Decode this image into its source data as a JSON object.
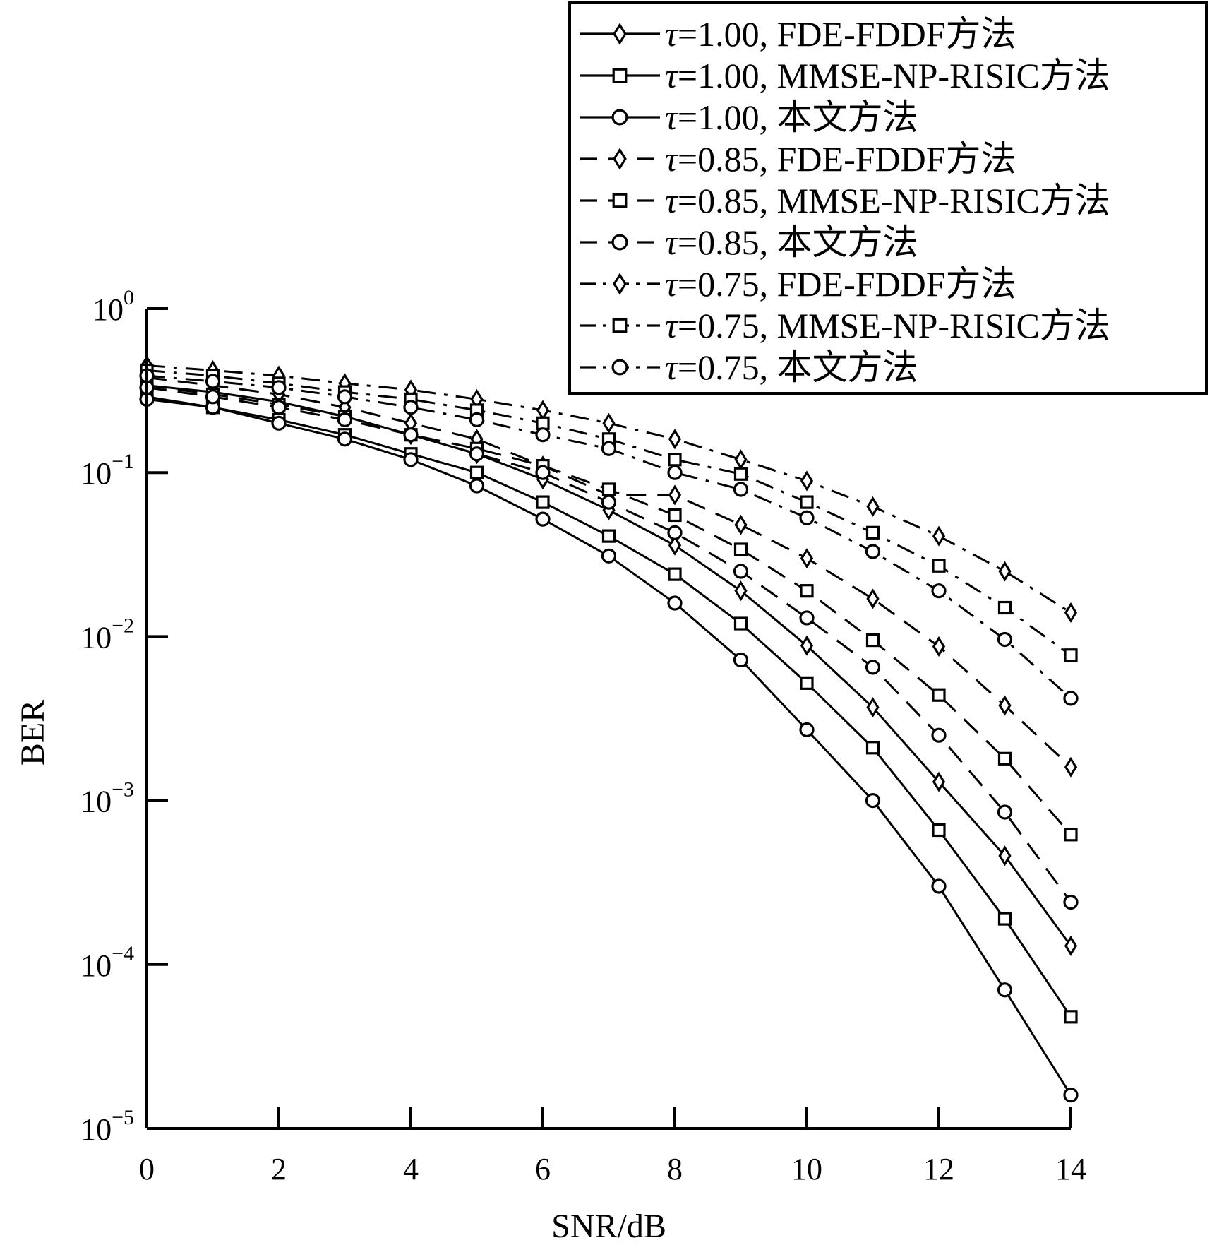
{
  "chart_data": {
    "type": "line",
    "title": "",
    "xlabel": "SNR/dB",
    "ylabel": "BER",
    "yscale": "log",
    "xlim": [
      0,
      14
    ],
    "ylim": [
      1e-05,
      1
    ],
    "grid": false,
    "legend_position": "top-right",
    "x_ticks": [
      "0",
      "2",
      "4",
      "6",
      "8",
      "10",
      "12",
      "14"
    ],
    "y_ticks": [
      {
        "base": "10",
        "exp": "0"
      },
      {
        "base": "10",
        "exp": "−1"
      },
      {
        "base": "10",
        "exp": "−2"
      },
      {
        "base": "10",
        "exp": "−3"
      },
      {
        "base": "10",
        "exp": "−4"
      },
      {
        "base": "10",
        "exp": "−5"
      }
    ],
    "x": [
      0,
      1,
      2,
      3,
      4,
      5,
      6,
      7,
      8,
      9,
      10,
      11,
      12,
      13,
      14
    ],
    "series": [
      {
        "tau": "τ",
        "name": "=1.00, FDE-FDDF方法",
        "marker": "diamond",
        "linestyle": "solid",
        "values": [
          0.34,
          0.31,
          0.27,
          0.22,
          0.17,
          0.13,
          0.091,
          0.059,
          0.036,
          0.019,
          0.0088,
          0.0037,
          0.0013,
          0.00046,
          0.00013
        ]
      },
      {
        "tau": "τ",
        "name": "=1.00, MMSE-NP-RISIC方法",
        "marker": "square",
        "linestyle": "solid",
        "values": [
          0.29,
          0.25,
          0.21,
          0.17,
          0.13,
          0.1,
          0.066,
          0.041,
          0.024,
          0.012,
          0.0052,
          0.0021,
          0.00066,
          0.00019,
          4.8e-05
        ]
      },
      {
        "tau": "τ",
        "name": "=1.00, 本文方法",
        "marker": "circle",
        "linestyle": "solid",
        "values": [
          0.28,
          0.25,
          0.2,
          0.16,
          0.12,
          0.083,
          0.052,
          0.031,
          0.016,
          0.0072,
          0.0027,
          0.001,
          0.0003,
          7e-05,
          1.6e-05
        ]
      },
      {
        "tau": "τ",
        "name": "=0.85, FDE-FDDF方法",
        "marker": "diamond",
        "linestyle": "dashed",
        "values": [
          0.38,
          0.34,
          0.3,
          0.25,
          0.2,
          0.16,
          0.11,
          0.073,
          0.073,
          0.048,
          0.03,
          0.017,
          0.0087,
          0.0038,
          0.0016
        ]
      },
      {
        "tau": "τ",
        "name": "=0.85, MMSE-NP-RISIC方法",
        "marker": "square",
        "linestyle": "dashed",
        "values": [
          0.34,
          0.3,
          0.26,
          0.22,
          0.17,
          0.14,
          0.11,
          0.079,
          0.055,
          0.034,
          0.019,
          0.0095,
          0.0044,
          0.0018,
          0.00062
        ]
      },
      {
        "tau": "τ",
        "name": "=0.85, 本文方法",
        "marker": "circle",
        "linestyle": "dashed",
        "values": [
          0.33,
          0.29,
          0.25,
          0.21,
          0.17,
          0.13,
          0.1,
          0.066,
          0.043,
          0.025,
          0.013,
          0.0065,
          0.0025,
          0.00085,
          0.00024
        ]
      },
      {
        "tau": "τ",
        "name": "=0.75, FDE-FDDF方法",
        "marker": "diamond",
        "linestyle": "dashdot",
        "values": [
          0.45,
          0.42,
          0.39,
          0.35,
          0.32,
          0.28,
          0.24,
          0.2,
          0.16,
          0.12,
          0.089,
          0.062,
          0.041,
          0.025,
          0.014
        ]
      },
      {
        "tau": "τ",
        "name": "=0.75, MMSE-NP-RISIC方法",
        "marker": "square",
        "linestyle": "dashdot",
        "values": [
          0.42,
          0.39,
          0.35,
          0.31,
          0.28,
          0.24,
          0.2,
          0.16,
          0.12,
          0.098,
          0.066,
          0.043,
          0.027,
          0.015,
          0.0077
        ]
      },
      {
        "tau": "τ",
        "name": "=0.75, 本文方法",
        "marker": "circle",
        "linestyle": "dashdot",
        "values": [
          0.39,
          0.36,
          0.33,
          0.29,
          0.25,
          0.21,
          0.17,
          0.14,
          0.1,
          0.079,
          0.053,
          0.033,
          0.019,
          0.0096,
          0.0042
        ]
      }
    ]
  }
}
